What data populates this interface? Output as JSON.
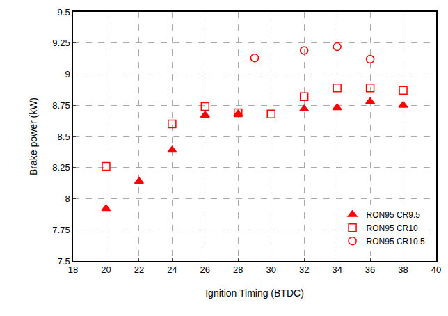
{
  "chart_data": {
    "type": "scatter",
    "x_label": "Ignition Timing (BTDC)",
    "y_label": "Brake power (kW)",
    "xlim": [
      18,
      40
    ],
    "xticks": [
      18,
      20,
      22,
      24,
      26,
      28,
      30,
      32,
      34,
      36,
      38,
      40
    ],
    "ylim": [
      7.5,
      9.5
    ],
    "yticks": [
      7.5,
      7.75,
      8,
      8.25,
      8.5,
      8.75,
      9,
      9.25,
      9.5
    ],
    "grid": true,
    "legend": "lower right",
    "series": [
      {
        "name": "RON95 CR9.5",
        "color": "#ff0000",
        "marker": "triangle-up",
        "x": [
          20,
          22,
          24,
          26,
          28,
          32,
          34,
          36,
          38
        ],
        "values": [
          7.92,
          8.14,
          8.39,
          8.67,
          8.68,
          8.72,
          8.73,
          8.78,
          8.75
        ]
      },
      {
        "name": "RON95 CR10",
        "color": "#ff0000",
        "marker": "square-open",
        "x": [
          20,
          24,
          26,
          28,
          30,
          32,
          34,
          36,
          38
        ],
        "values": [
          8.26,
          8.6,
          8.74,
          8.69,
          8.68,
          8.82,
          8.89,
          8.89,
          8.87
        ]
      },
      {
        "name": "RON95 CR10.5",
        "color": "#ff0000",
        "marker": "circle-open",
        "x": [
          29,
          32,
          34,
          36
        ],
        "values": [
          9.13,
          9.19,
          9.22,
          9.12
        ]
      }
    ]
  }
}
